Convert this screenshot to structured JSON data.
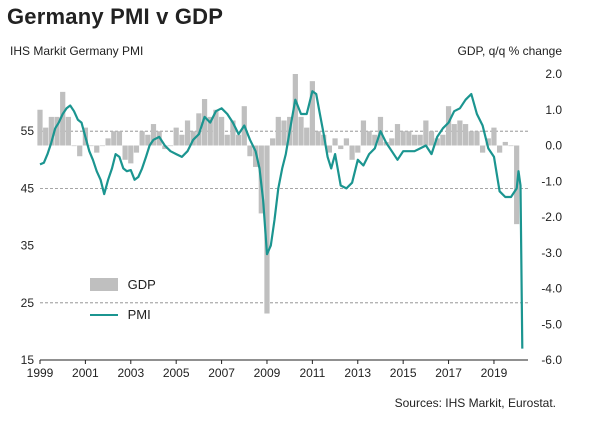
{
  "title": "Germany PMI v GDP",
  "source": "Sources: IHS Markit, Eurostat.",
  "colors": {
    "gdp_bar": "#bfbfbf",
    "pmi_line": "#1b9590",
    "text": "#222222",
    "grid": "#888888"
  },
  "chart_data": {
    "type": "bar+line",
    "xlim": [
      1999.0,
      2020.5
    ],
    "x_ticks": [
      1999,
      2001,
      2003,
      2005,
      2007,
      2009,
      2011,
      2013,
      2015,
      2017,
      2019
    ],
    "x_tick_labels": [
      "1999",
      "2001",
      "2003",
      "2005",
      "2007",
      "2009",
      "2011",
      "2013",
      "2015",
      "2017",
      "2019"
    ],
    "left_axis": {
      "label": "IHS Markit Germany PMI",
      "ylim": [
        15,
        65
      ],
      "ticks": [
        15,
        25,
        35,
        45,
        55
      ],
      "tick_labels": [
        "15",
        "25",
        "35",
        "45",
        "55"
      ]
    },
    "right_axis": {
      "label": "GDP, q/q % change",
      "ylim": [
        -6.0,
        2.0
      ],
      "ticks": [
        2.0,
        1.0,
        0.0,
        -1.0,
        -2.0,
        -3.0,
        -4.0,
        -5.0,
        -6.0
      ],
      "tick_labels": [
        "2.0",
        "1.0",
        "0.0",
        "-1.0",
        "-2.0",
        "-3.0",
        "-4.0",
        "-5.0",
        "-6.0"
      ]
    },
    "grid": {
      "horizontal_dashed_at_left_values": [
        25,
        45,
        55
      ]
    },
    "legend": {
      "placement": "bottom-left",
      "entries": [
        "GDP",
        "PMI"
      ]
    },
    "series": [
      {
        "name": "GDP",
        "type": "bar",
        "axis": "right",
        "x": [
          1999.0,
          1999.25,
          1999.5,
          1999.75,
          2000.0,
          2000.25,
          2000.5,
          2000.75,
          2001.0,
          2001.25,
          2001.5,
          2001.75,
          2002.0,
          2002.25,
          2002.5,
          2002.75,
          2003.0,
          2003.25,
          2003.5,
          2003.75,
          2004.0,
          2004.25,
          2004.5,
          2004.75,
          2005.0,
          2005.25,
          2005.5,
          2005.75,
          2006.0,
          2006.25,
          2006.5,
          2006.75,
          2007.0,
          2007.25,
          2007.5,
          2007.75,
          2008.0,
          2008.25,
          2008.5,
          2008.75,
          2009.0,
          2009.25,
          2009.5,
          2009.75,
          2010.0,
          2010.25,
          2010.5,
          2010.75,
          2011.0,
          2011.25,
          2011.5,
          2011.75,
          2012.0,
          2012.25,
          2012.5,
          2012.75,
          2013.0,
          2013.25,
          2013.5,
          2013.75,
          2014.0,
          2014.25,
          2014.5,
          2014.75,
          2015.0,
          2015.25,
          2015.5,
          2015.75,
          2016.0,
          2016.25,
          2016.5,
          2016.75,
          2017.0,
          2017.25,
          2017.5,
          2017.75,
          2018.0,
          2018.25,
          2018.5,
          2018.75,
          2019.0,
          2019.25,
          2019.5,
          2019.75,
          2020.0
        ],
        "values": [
          1.0,
          0.5,
          0.8,
          0.8,
          1.5,
          0.8,
          0.0,
          -0.3,
          0.5,
          0.0,
          -0.2,
          0.0,
          0.2,
          0.4,
          0.4,
          -0.4,
          -0.5,
          -0.2,
          0.4,
          0.3,
          0.6,
          0.4,
          -0.1,
          0.0,
          0.5,
          0.3,
          0.7,
          0.4,
          0.9,
          1.3,
          0.8,
          1.0,
          0.8,
          0.3,
          0.7,
          0.3,
          1.1,
          -0.3,
          -0.6,
          -1.9,
          -4.7,
          0.2,
          0.8,
          0.7,
          0.8,
          2.0,
          0.8,
          0.5,
          1.8,
          0.4,
          0.3,
          -0.2,
          0.2,
          -0.1,
          0.2,
          -0.4,
          -0.2,
          0.7,
          0.4,
          0.3,
          0.8,
          0.1,
          0.2,
          0.6,
          0.4,
          0.4,
          0.3,
          0.3,
          0.7,
          0.4,
          0.2,
          0.3,
          1.1,
          0.6,
          0.7,
          0.6,
          0.4,
          0.4,
          -0.2,
          0.2,
          0.5,
          -0.2,
          0.1,
          0.0,
          -2.2
        ]
      },
      {
        "name": "PMI",
        "type": "line",
        "axis": "left",
        "x": [
          1999.0,
          1999.17,
          1999.33,
          1999.5,
          1999.67,
          1999.83,
          2000.0,
          2000.17,
          2000.33,
          2000.5,
          2000.67,
          2000.83,
          2001.0,
          2001.17,
          2001.33,
          2001.5,
          2001.67,
          2001.83,
          2002.0,
          2002.17,
          2002.33,
          2002.5,
          2002.67,
          2002.83,
          2003.0,
          2003.17,
          2003.33,
          2003.5,
          2003.67,
          2003.83,
          2004.0,
          2004.25,
          2004.5,
          2004.75,
          2005.0,
          2005.25,
          2005.5,
          2005.75,
          2006.0,
          2006.25,
          2006.5,
          2006.75,
          2007.0,
          2007.25,
          2007.5,
          2007.75,
          2008.0,
          2008.25,
          2008.5,
          2008.67,
          2008.83,
          2009.0,
          2009.17,
          2009.33,
          2009.5,
          2009.67,
          2009.83,
          2010.0,
          2010.25,
          2010.5,
          2010.75,
          2011.0,
          2011.17,
          2011.33,
          2011.5,
          2011.67,
          2011.83,
          2012.0,
          2012.25,
          2012.5,
          2012.75,
          2013.0,
          2013.25,
          2013.5,
          2013.75,
          2014.0,
          2014.25,
          2014.5,
          2014.75,
          2015.0,
          2015.25,
          2015.5,
          2015.75,
          2016.0,
          2016.25,
          2016.5,
          2016.75,
          2017.0,
          2017.25,
          2017.5,
          2017.75,
          2018.0,
          2018.25,
          2018.5,
          2018.75,
          2019.0,
          2019.25,
          2019.5,
          2019.75,
          2020.0,
          2020.08,
          2020.17,
          2020.25
        ],
        "values": [
          49.2,
          49.5,
          51.0,
          53.0,
          55.5,
          56.5,
          58.0,
          59.0,
          59.5,
          58.5,
          57.0,
          56.5,
          54.0,
          51.5,
          50.0,
          48.0,
          46.5,
          44.0,
          46.5,
          48.5,
          51.0,
          50.5,
          48.5,
          48.0,
          48.2,
          46.5,
          47.0,
          48.5,
          50.5,
          52.5,
          53.5,
          54.0,
          52.5,
          51.5,
          51.0,
          50.5,
          51.5,
          53.5,
          54.5,
          57.5,
          56.5,
          58.5,
          59.0,
          58.0,
          56.5,
          54.5,
          56.0,
          53.5,
          51.5,
          48.5,
          43.0,
          33.5,
          35.0,
          39.5,
          45.0,
          48.5,
          51.0,
          55.0,
          60.5,
          58.0,
          58.0,
          62.0,
          61.5,
          58.0,
          54.5,
          50.5,
          48.5,
          51.0,
          45.5,
          45.0,
          46.0,
          50.0,
          49.0,
          51.0,
          52.0,
          55.0,
          53.0,
          51.5,
          50.0,
          51.5,
          51.5,
          51.5,
          52.0,
          52.5,
          51.0,
          54.0,
          55.5,
          56.5,
          58.5,
          59.0,
          60.5,
          61.5,
          58.0,
          56.0,
          52.0,
          50.5,
          44.5,
          43.5,
          43.5,
          45.0,
          48.0,
          45.5,
          17.0
        ]
      }
    ]
  }
}
